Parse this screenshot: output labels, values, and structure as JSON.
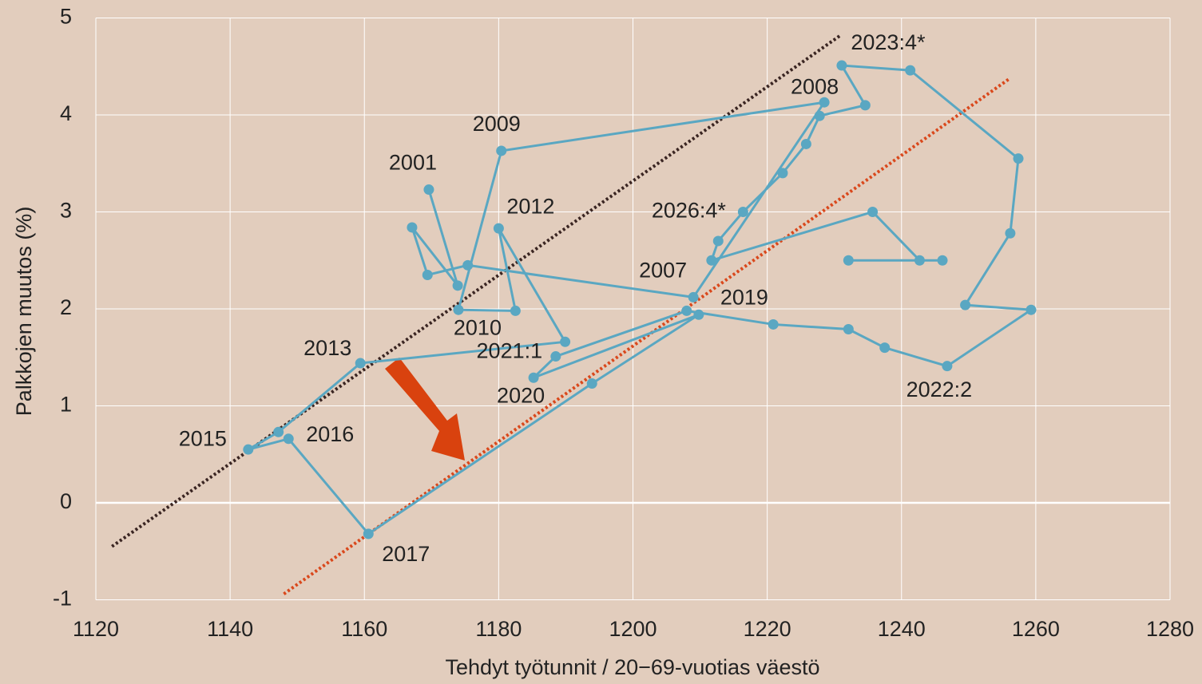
{
  "chart_data": {
    "type": "scatter",
    "xlabel": "Tehdyt työtunnit / 20−69-vuotias väestö",
    "ylabel": "Palkkojen muutos (%)",
    "xlim": [
      1120,
      1280
    ],
    "ylim": [
      -1,
      5
    ],
    "xticks": [
      1120,
      1140,
      1160,
      1180,
      1200,
      1220,
      1240,
      1260,
      1280
    ],
    "yticks": [
      -1,
      0,
      1,
      2,
      3,
      4,
      5
    ],
    "grid": true,
    "color": "#5aa7c2",
    "connected": true,
    "x": [
      1169.6,
      1173.9,
      1167.1,
      1169.4,
      1175.4,
      1209.0,
      1228.5,
      1180.4,
      1174.0,
      1182.5,
      1180.0,
      1189.9,
      1159.4,
      1147.2,
      1142.7,
      1148.7,
      1160.6,
      1193.9,
      1209.8,
      1185.2,
      1188.5,
      1208.0,
      1220.9,
      1232.1,
      1237.5,
      1246.8,
      1259.3,
      1249.5,
      1256.2,
      1257.4,
      1241.3,
      1231.1,
      1234.6,
      1227.8,
      1225.8,
      1222.3,
      1216.4,
      1212.7,
      1211.7,
      1235.7,
      1242.7,
      1246.1,
      1232.1
    ],
    "values": [
      3.23,
      2.24,
      2.84,
      2.35,
      2.45,
      2.12,
      4.13,
      3.63,
      1.99,
      1.98,
      2.83,
      1.66,
      1.44,
      0.73,
      0.55,
      0.66,
      -0.32,
      1.23,
      1.94,
      1.29,
      1.51,
      1.98,
      1.84,
      1.79,
      1.6,
      1.41,
      1.99,
      2.04,
      2.78,
      3.55,
      4.46,
      4.51,
      4.1,
      3.99,
      3.7,
      3.4,
      3.0,
      2.7,
      2.5,
      3.0,
      2.5,
      2.5,
      2.5
    ],
    "labels": [
      "2001",
      null,
      null,
      null,
      null,
      "2007",
      "2008",
      "2009",
      "2010",
      null,
      "2012",
      null,
      "2013",
      null,
      "2015",
      "2016",
      "2017",
      null,
      "2019",
      "2020",
      "2021:1",
      null,
      null,
      null,
      null,
      "2022:2",
      null,
      null,
      null,
      null,
      null,
      "2023:4*",
      null,
      null,
      null,
      null,
      "2026:4*",
      null,
      null,
      null,
      null,
      null,
      null
    ],
    "trendlines": [
      {
        "color": "#3a2522",
        "x": [
          1122.4,
          1230.9
        ],
        "y": [
          -0.45,
          4.82
        ]
      },
      {
        "color": "#d9481c",
        "x": [
          1148.0,
          1256.2
        ],
        "y": [
          -0.94,
          4.38
        ]
      }
    ]
  }
}
